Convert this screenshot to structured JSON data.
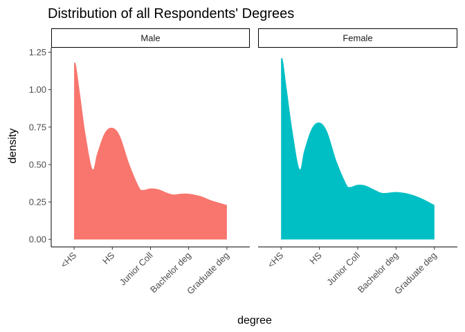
{
  "chart_data": {
    "type": "area",
    "title": "Distribution of all Respondents' Degrees",
    "xlabel": "degree",
    "ylabel": "density",
    "categories": [
      "<HS",
      "HS",
      "Junior Coll",
      "Bachelor deg",
      "Graduate deg"
    ],
    "ylim": [
      0,
      1.28
    ],
    "yticks": [
      0.0,
      0.25,
      0.5,
      0.75,
      1.0,
      1.25
    ],
    "ytick_labels": [
      "0.00",
      "0.25",
      "0.50",
      "0.75",
      "1.00",
      "1.25"
    ],
    "grid": false,
    "legend": "none",
    "facets": [
      {
        "name": "Male",
        "color": "#F8766D",
        "points": [
          [
            1.0,
            1.18
          ],
          [
            1.05,
            1.16
          ],
          [
            1.15,
            0.98
          ],
          [
            1.3,
            0.7
          ],
          [
            1.48,
            0.47
          ],
          [
            1.6,
            0.57
          ],
          [
            1.8,
            0.71
          ],
          [
            2.0,
            0.745
          ],
          [
            2.2,
            0.69
          ],
          [
            2.45,
            0.5
          ],
          [
            2.7,
            0.35
          ],
          [
            2.8,
            0.33
          ],
          [
            3.0,
            0.34
          ],
          [
            3.2,
            0.335
          ],
          [
            3.45,
            0.31
          ],
          [
            3.6,
            0.3
          ],
          [
            3.8,
            0.305
          ],
          [
            4.0,
            0.305
          ],
          [
            4.3,
            0.29
          ],
          [
            4.6,
            0.26
          ],
          [
            5.0,
            0.23
          ]
        ]
      },
      {
        "name": "Female",
        "color": "#00BFC4",
        "points": [
          [
            1.0,
            1.21
          ],
          [
            1.05,
            1.19
          ],
          [
            1.15,
            1.0
          ],
          [
            1.3,
            0.72
          ],
          [
            1.48,
            0.47
          ],
          [
            1.6,
            0.59
          ],
          [
            1.8,
            0.74
          ],
          [
            2.0,
            0.78
          ],
          [
            2.2,
            0.72
          ],
          [
            2.45,
            0.52
          ],
          [
            2.7,
            0.37
          ],
          [
            2.8,
            0.35
          ],
          [
            3.0,
            0.365
          ],
          [
            3.2,
            0.36
          ],
          [
            3.45,
            0.33
          ],
          [
            3.65,
            0.31
          ],
          [
            3.9,
            0.315
          ],
          [
            4.1,
            0.315
          ],
          [
            4.4,
            0.3
          ],
          [
            4.7,
            0.27
          ],
          [
            5.0,
            0.23
          ]
        ]
      }
    ]
  }
}
